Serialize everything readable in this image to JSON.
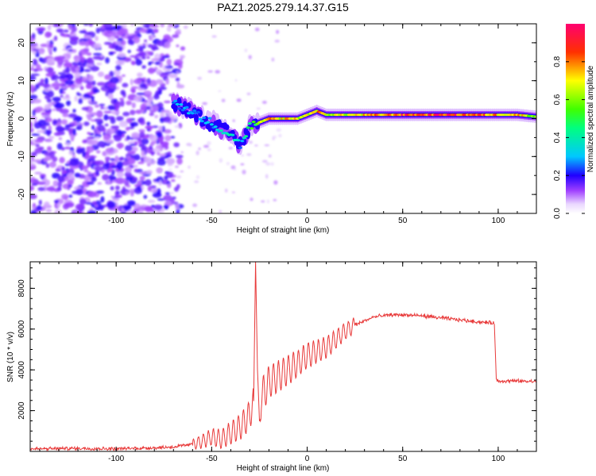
{
  "title": "PAZ1.2025.279.14.37.G15",
  "chart_data": [
    {
      "type": "heatmap",
      "xlabel": "Height of straight line (km)",
      "ylabel": "Frequency (Hz)",
      "xlim": [
        -145,
        120
      ],
      "ylim": [
        -25,
        25
      ],
      "xticks": [
        -100,
        -50,
        0,
        50,
        100
      ],
      "xtick_labels": [
        "-100",
        "-50",
        "0",
        "50",
        "100"
      ],
      "yticks": [
        -20,
        -10,
        0,
        10,
        20
      ],
      "ytick_labels": [
        "-20",
        "-10",
        "0",
        "10",
        "20"
      ],
      "colorbar": {
        "label": "Normalized spectral amplitude",
        "range": [
          0,
          1
        ],
        "ticks": [
          0.0,
          0.2,
          0.4,
          0.6,
          0.8
        ],
        "tick_labels": [
          "0.0",
          "0.2",
          "0.4",
          "0.6",
          "0.8"
        ],
        "colormap": [
          "#ffffff",
          "#d8b4fe",
          "#8b00ff",
          "#0000ff",
          "#00e5ff",
          "#00ff00",
          "#ffff00",
          "#ff8c00",
          "#ff0000",
          "#ff0066"
        ]
      },
      "ridge": {
        "description_points_x": [
          -70,
          -65,
          -60,
          -55,
          -50,
          -45,
          -40,
          -35,
          -33,
          -30,
          -25,
          -20,
          -15,
          -10,
          -5,
          0,
          5,
          10,
          20,
          30,
          40,
          50,
          60,
          70,
          80,
          90,
          100,
          110,
          120
        ],
        "frequency": [
          4,
          3,
          2,
          0,
          -1,
          -3,
          -4,
          -7,
          -5,
          -2,
          -1,
          0,
          0,
          0,
          0,
          1,
          2,
          1,
          1,
          1,
          1,
          1,
          1,
          1,
          1,
          1,
          1,
          1,
          0.5
        ],
        "amplitude": [
          0.3,
          0.3,
          0.3,
          0.3,
          0.3,
          0.35,
          0.4,
          0.3,
          0.35,
          0.5,
          0.6,
          0.8,
          0.7,
          0.8,
          0.7,
          0.7,
          0.8,
          0.7,
          0.7,
          0.75,
          0.8,
          0.9,
          0.9,
          0.95,
          0.9,
          0.85,
          0.8,
          0.8,
          0.6
        ]
      }
    },
    {
      "type": "line",
      "xlabel": "Height of straight line (km)",
      "ylabel": "SNR (10 * v/v)",
      "xlim": [
        -145,
        120
      ],
      "ylim": [
        0,
        9300
      ],
      "xticks": [
        -100,
        -50,
        0,
        50,
        100
      ],
      "xtick_labels": [
        "-100",
        "-50",
        "0",
        "50",
        "100"
      ],
      "yticks": [
        2000,
        4000,
        6000,
        8000
      ],
      "ytick_labels": [
        "2000",
        "4000",
        "6000",
        "8000"
      ],
      "series": [
        {
          "name": "SNR",
          "color": "#e83a3a",
          "x": [
            -145,
            -120,
            -100,
            -80,
            -70,
            -60,
            -55,
            -50,
            -45,
            -40,
            -35,
            -30,
            -28,
            -27,
            -26,
            -25,
            -24,
            -22,
            -20,
            -15,
            -10,
            -5,
            0,
            5,
            10,
            15,
            20,
            25,
            30,
            35,
            40,
            45,
            50,
            60,
            70,
            80,
            90,
            98,
            99,
            100,
            110,
            120
          ],
          "y": [
            120,
            150,
            130,
            180,
            220,
            350,
            500,
            700,
            600,
            900,
            1200,
            1800,
            2500,
            9300,
            4000,
            1500,
            2800,
            3000,
            3400,
            3700,
            4000,
            4300,
            4700,
            4900,
            5100,
            5500,
            5900,
            6200,
            6400,
            6600,
            6650,
            6700,
            6700,
            6650,
            6550,
            6450,
            6350,
            6300,
            3500,
            3450,
            3450,
            3420
          ]
        }
      ]
    }
  ]
}
